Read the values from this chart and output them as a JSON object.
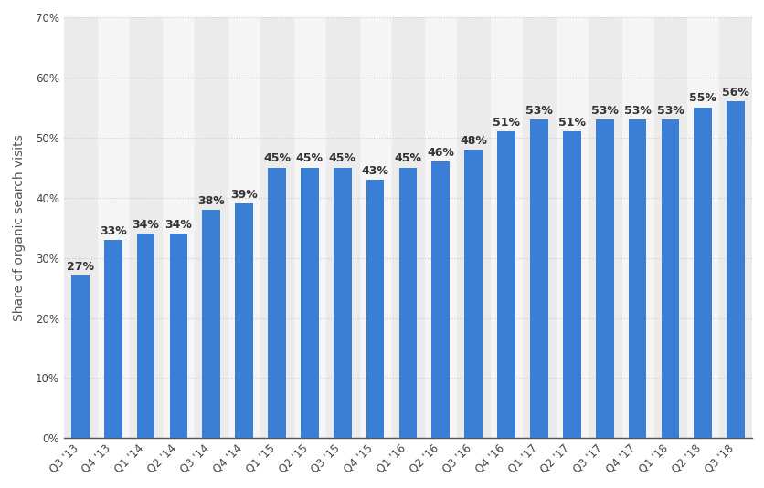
{
  "categories": [
    "Q3 '13",
    "Q4 '13",
    "Q1 '14",
    "Q2 '14",
    "Q3 '14",
    "Q4 '14",
    "Q1 '15",
    "Q2 '15",
    "Q3 '15",
    "Q4 '15",
    "Q1 '16",
    "Q2 '16",
    "Q3 '16",
    "Q4 '16",
    "Q1 '17",
    "Q2 '17",
    "Q3 '17",
    "Q4 '17",
    "Q1 '18",
    "Q2 '18",
    "Q3 '18"
  ],
  "values": [
    27,
    33,
    34,
    34,
    38,
    39,
    45,
    45,
    45,
    43,
    45,
    46,
    48,
    51,
    53,
    51,
    53,
    53,
    53,
    55,
    56
  ],
  "bar_color": "#3a7fd5",
  "ylabel": "Share of organic search visits",
  "ylim": [
    0,
    70
  ],
  "yticks": [
    0,
    10,
    20,
    30,
    40,
    50,
    60,
    70
  ],
  "background_color": "#ffffff",
  "plot_bg_color": "#f5f5f5",
  "col_band_color": "#ebebeb",
  "grid_color": "#cccccc",
  "label_fontsize": 9,
  "tick_fontsize": 8.5,
  "ylabel_fontsize": 10
}
